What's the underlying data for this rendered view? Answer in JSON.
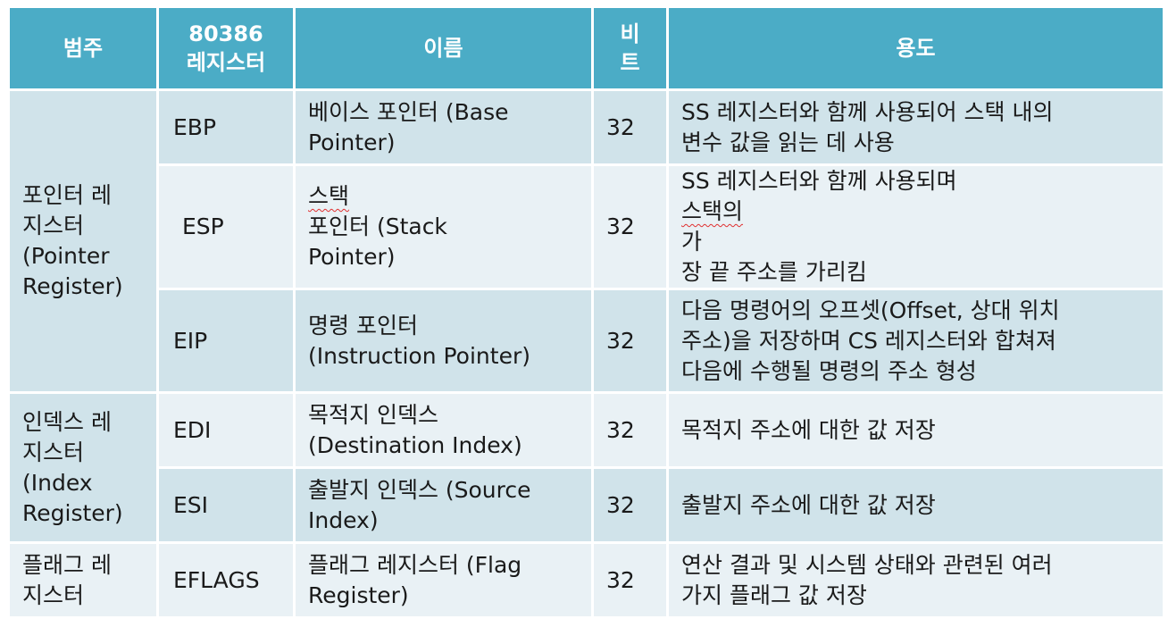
{
  "headers": {
    "category": "범주",
    "register_line1": "80386",
    "register_line2": "레지스터",
    "name": "이름",
    "bits_line1": "비",
    "bits_line2": "트",
    "usage": "용도"
  },
  "categories": [
    {
      "lines": [
        "포인터 레",
        "지스터",
        "(Pointer",
        "Register)"
      ]
    },
    {
      "lines": [
        "인덱스 레",
        "지스터",
        "(Index",
        "Register)"
      ]
    },
    {
      "lines": [
        "플래그 레",
        "지스터"
      ]
    }
  ],
  "rows": [
    {
      "register": "EBP",
      "name": [
        "베이스 포인터 (Base",
        "Pointer)"
      ],
      "bits": "32",
      "usage": [
        "SS 레지스터와 함께 사용되어 스택 내의",
        "변수 값을 읽는 데 사용"
      ]
    },
    {
      "register": "ESP",
      "name_prefix": "스택",
      "name_rest": " 포인터 (Stack",
      "name_line2": "Pointer)",
      "bits": "32",
      "usage_line1_a": "SS 레지스터와 함께 사용되며 ",
      "usage_line1_b": "스택의",
      "usage_line1_c": " 가",
      "usage_line2": "장 끝 주소를 가리킴"
    },
    {
      "register": "EIP",
      "name": [
        "명령 포인터",
        "(Instruction Pointer)"
      ],
      "bits": "32",
      "usage": [
        "다음 명령어의 오프셋(Offset, 상대 위치",
        "주소)을 저장하며 CS 레지스터와 합쳐져",
        "다음에 수행될 명령의 주소 형성"
      ]
    },
    {
      "register": "EDI",
      "name": [
        "목적지 인덱스",
        "(Destination Index)"
      ],
      "bits": "32",
      "usage": [
        "목적지 주소에 대한 값 저장"
      ]
    },
    {
      "register": "ESI",
      "name": [
        "출발지 인덱스 (Source",
        "Index)"
      ],
      "bits": "32",
      "usage": [
        "출발지 주소에 대한 값 저장"
      ]
    },
    {
      "register": "EFLAGS",
      "name": [
        "플래그 레지스터 (Flag",
        "Register)"
      ],
      "bits": "32",
      "usage": [
        "연산 결과 및 시스템 상태와 관련된 여러",
        "가지 플래그 값 저장"
      ]
    }
  ],
  "colors": {
    "header": "#4bacc6",
    "band_dark": "#d0e3ea",
    "band_light": "#e9f1f5"
  }
}
